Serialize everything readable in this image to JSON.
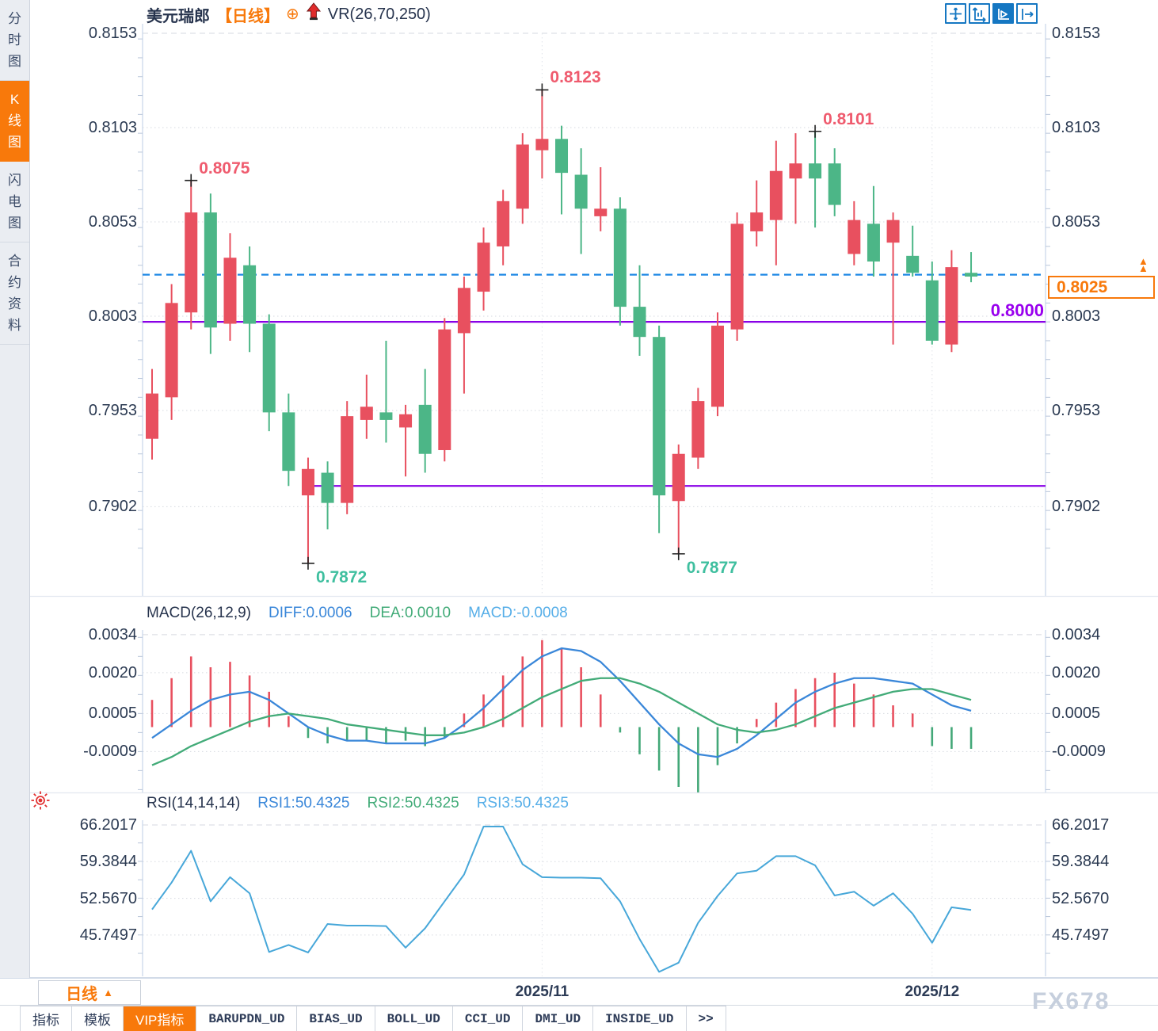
{
  "header": {
    "symbol": "美元瑞郎",
    "period_tag": "【日线】",
    "add_icon": "⊕",
    "overlay_indicator": "VR(26,70,250)"
  },
  "sidebar": {
    "items": [
      {
        "label": "分时图",
        "active": false
      },
      {
        "label": "K线图",
        "active": true
      },
      {
        "label": "闪电图",
        "active": false
      },
      {
        "label": "合约资料",
        "active": false
      }
    ]
  },
  "toolbar": {
    "icons": [
      "crosshair-pan-icon",
      "fit-scale-icon",
      "auto-scroll-icon",
      "shift-right-icon"
    ],
    "active_index": 2
  },
  "colors": {
    "accent_orange": "#f8790b",
    "candle_up": "#e8505f",
    "candle_down": "#4cb687",
    "line_purple": "#8800e6",
    "price_line_blue": "#1e88e5",
    "macd_diff": "#3a87d9",
    "macd_dea": "#42ab78",
    "hist_pos": "#e8505f",
    "hist_neg": "#43a878",
    "rsi_line": "#47a7d9",
    "annotation_high": "#ef5b6e",
    "annotation_low": "#3fbf9f",
    "axis_text": "#2b3a52",
    "support_label_purple": "#9900ee"
  },
  "chart_data": [
    {
      "type": "candlestick",
      "title": "美元瑞郎 日线",
      "y_ticks": [
        "0.8153",
        "0.8103",
        "0.8053",
        "0.8003",
        "0.7953",
        "0.7902"
      ],
      "x_ticks": [
        {
          "label": "2025/11",
          "index": 20
        },
        {
          "label": "2025/12",
          "index": 40
        }
      ],
      "candles": [
        [
          0.7938,
          0.7975,
          0.7927,
          0.7962
        ],
        [
          0.796,
          0.802,
          0.7948,
          0.801
        ],
        [
          0.8005,
          0.8075,
          0.7996,
          0.8058
        ],
        [
          0.8058,
          0.8068,
          0.7983,
          0.7997
        ],
        [
          0.7999,
          0.8047,
          0.799,
          0.8034
        ],
        [
          0.803,
          0.804,
          0.7984,
          0.7999
        ],
        [
          0.7999,
          0.8004,
          0.7942,
          0.7952
        ],
        [
          0.7952,
          0.7962,
          0.7913,
          0.7921
        ],
        [
          0.7908,
          0.7928,
          0.7872,
          0.7922
        ],
        [
          0.792,
          0.7926,
          0.789,
          0.7904
        ],
        [
          0.7904,
          0.7958,
          0.7898,
          0.795
        ],
        [
          0.7948,
          0.7972,
          0.7938,
          0.7955
        ],
        [
          0.7952,
          0.799,
          0.7936,
          0.7948
        ],
        [
          0.7944,
          0.7956,
          0.7918,
          0.7951
        ],
        [
          0.7956,
          0.7975,
          0.792,
          0.793
        ],
        [
          0.7932,
          0.8002,
          0.7926,
          0.7996
        ],
        [
          0.7994,
          0.8024,
          0.7962,
          0.8018
        ],
        [
          0.8016,
          0.805,
          0.8006,
          0.8042
        ],
        [
          0.804,
          0.807,
          0.803,
          0.8064
        ],
        [
          0.806,
          0.81,
          0.8052,
          0.8094
        ],
        [
          0.8091,
          0.8123,
          0.8076,
          0.8097
        ],
        [
          0.8097,
          0.8104,
          0.8057,
          0.8079
        ],
        [
          0.8078,
          0.8092,
          0.8036,
          0.806
        ],
        [
          0.8056,
          0.8082,
          0.8048,
          0.806
        ],
        [
          0.806,
          0.8066,
          0.7998,
          0.8008
        ],
        [
          0.8008,
          0.803,
          0.7982,
          0.7992
        ],
        [
          0.7992,
          0.7998,
          0.7888,
          0.7908
        ],
        [
          0.7905,
          0.7935,
          0.7877,
          0.793
        ],
        [
          0.7928,
          0.7965,
          0.7922,
          0.7958
        ],
        [
          0.7955,
          0.8005,
          0.795,
          0.7998
        ],
        [
          0.7996,
          0.8058,
          0.799,
          0.8052
        ],
        [
          0.8048,
          0.8075,
          0.804,
          0.8058
        ],
        [
          0.8054,
          0.8096,
          0.803,
          0.808
        ],
        [
          0.8076,
          0.81,
          0.8052,
          0.8084
        ],
        [
          0.8084,
          0.8101,
          0.805,
          0.8076
        ],
        [
          0.8084,
          0.8092,
          0.8056,
          0.8062
        ],
        [
          0.8036,
          0.8064,
          0.803,
          0.8054
        ],
        [
          0.8052,
          0.8072,
          0.8024,
          0.8032
        ],
        [
          0.8042,
          0.8058,
          0.7988,
          0.8054
        ],
        [
          0.8035,
          0.8051,
          0.8024,
          0.8026
        ],
        [
          0.8022,
          0.8032,
          0.7988,
          0.799
        ],
        [
          0.7988,
          0.8038,
          0.7984,
          0.8029
        ],
        [
          0.8026,
          0.8037,
          0.8021,
          0.8024
        ]
      ],
      "annotations": [
        {
          "index": 2,
          "kind": "high",
          "text": "0.8075"
        },
        {
          "index": 8,
          "kind": "low",
          "text": "0.7872"
        },
        {
          "index": 20,
          "kind": "high",
          "text": "0.8123"
        },
        {
          "index": 27,
          "kind": "low",
          "text": "0.7877"
        },
        {
          "index": 34,
          "kind": "high",
          "text": "0.8101"
        }
      ],
      "support_resistance_lines": [
        {
          "price": 0.8,
          "label": "0.8000",
          "start_index": 0
        },
        {
          "price": 0.7913,
          "label": "",
          "start_index": 8
        }
      ],
      "current_price": {
        "label": "0.8025",
        "price": 0.8025
      }
    },
    {
      "type": "macd",
      "title": "MACD(26,12,9)",
      "readouts": [
        {
          "text": "DIFF:0.0006",
          "color": "#3a87d9"
        },
        {
          "text": "DEA:0.0010",
          "color": "#42ab78"
        },
        {
          "text": "MACD:-0.0008",
          "color": "#56aee8"
        }
      ],
      "y_ticks": [
        "0.0034",
        "0.0020",
        "0.0005",
        "-0.0009"
      ],
      "diff": [
        -0.0004,
        0.0001,
        0.0006,
        0.001,
        0.0012,
        0.0013,
        0.001,
        0.0005,
        0.0,
        -0.0003,
        -0.0005,
        -0.0005,
        -0.0006,
        -0.0006,
        -0.0006,
        -0.0004,
        0.0001,
        0.0007,
        0.0014,
        0.0021,
        0.0026,
        0.0029,
        0.0028,
        0.0024,
        0.0017,
        0.0009,
        0.0001,
        -0.0006,
        -0.001,
        -0.0011,
        -0.0008,
        -0.0003,
        0.0003,
        0.0009,
        0.0013,
        0.0016,
        0.0018,
        0.0018,
        0.0017,
        0.0016,
        0.0012,
        0.0008,
        0.0006
      ],
      "dea": [
        -0.0014,
        -0.0011,
        -0.0007,
        -0.0004,
        -0.0001,
        0.0002,
        0.0004,
        0.0005,
        0.0004,
        0.0003,
        0.0001,
        0.0,
        -0.0001,
        -0.0002,
        -0.0003,
        -0.0003,
        -0.0002,
        0.0,
        0.0003,
        0.0007,
        0.0011,
        0.0014,
        0.0017,
        0.0018,
        0.0018,
        0.0016,
        0.0013,
        0.0009,
        0.0005,
        0.0001,
        -0.0001,
        -0.0002,
        -0.0001,
        0.0001,
        0.0004,
        0.0007,
        0.0009,
        0.0011,
        0.0013,
        0.0014,
        0.0014,
        0.0012,
        0.001
      ],
      "hist": [
        0.001,
        0.0018,
        0.0026,
        0.0022,
        0.0024,
        0.0019,
        0.0013,
        0.0004,
        -0.0004,
        -0.0006,
        -0.0005,
        -0.0005,
        -0.0006,
        -0.0005,
        -0.0007,
        -0.0004,
        0.0005,
        0.0012,
        0.0019,
        0.0026,
        0.0032,
        0.0029,
        0.0022,
        0.0012,
        -0.0002,
        -0.001,
        -0.0016,
        -0.0022,
        -0.0024,
        -0.0014,
        -0.0006,
        0.0003,
        0.0009,
        0.0014,
        0.0018,
        0.002,
        0.0016,
        0.0012,
        0.0008,
        0.0005,
        -0.0007,
        -0.0008,
        -0.0008
      ]
    },
    {
      "type": "line",
      "title": "RSI(14,14,14)",
      "readouts": [
        {
          "text": "RSI1:50.4325",
          "color": "#3a87d9"
        },
        {
          "text": "RSI2:50.4325",
          "color": "#42ab78"
        },
        {
          "text": "RSI3:50.4325",
          "color": "#56aee8"
        }
      ],
      "y_ticks": [
        "66.2017",
        "59.3844",
        "52.5670",
        "45.7497"
      ],
      "values": [
        50.5,
        55.5,
        61.4,
        52.0,
        56.5,
        53.5,
        42.6,
        43.9,
        42.5,
        47.8,
        47.5,
        47.5,
        47.4,
        43.4,
        47.0,
        52.0,
        57.0,
        65.9,
        65.9,
        58.9,
        56.5,
        56.4,
        56.4,
        56.3,
        52.0,
        45.0,
        38.9,
        40.6,
        48.0,
        53.0,
        57.2,
        57.7,
        60.4,
        60.4,
        58.7,
        53.1,
        53.8,
        51.2,
        53.5,
        49.7,
        44.3,
        50.9,
        50.4
      ]
    }
  ],
  "bottom": {
    "period_button": {
      "label": "日线",
      "arrow": "▲"
    },
    "tabs": [
      {
        "label": "指标",
        "active": false,
        "mono": false
      },
      {
        "label": "模板",
        "active": false,
        "mono": false
      },
      {
        "label": "VIP指标",
        "active": true,
        "mono": false
      },
      {
        "label": "BARUPDN_UD",
        "active": false,
        "mono": true
      },
      {
        "label": "BIAS_UD",
        "active": false,
        "mono": true
      },
      {
        "label": "BOLL_UD",
        "active": false,
        "mono": true
      },
      {
        "label": "CCI_UD",
        "active": false,
        "mono": true
      },
      {
        "label": "DMI_UD",
        "active": false,
        "mono": true
      },
      {
        "label": "INSIDE_UD",
        "active": false,
        "mono": true
      },
      {
        "label": ">>",
        "active": false,
        "mono": true
      }
    ],
    "watermark": "FX678"
  }
}
